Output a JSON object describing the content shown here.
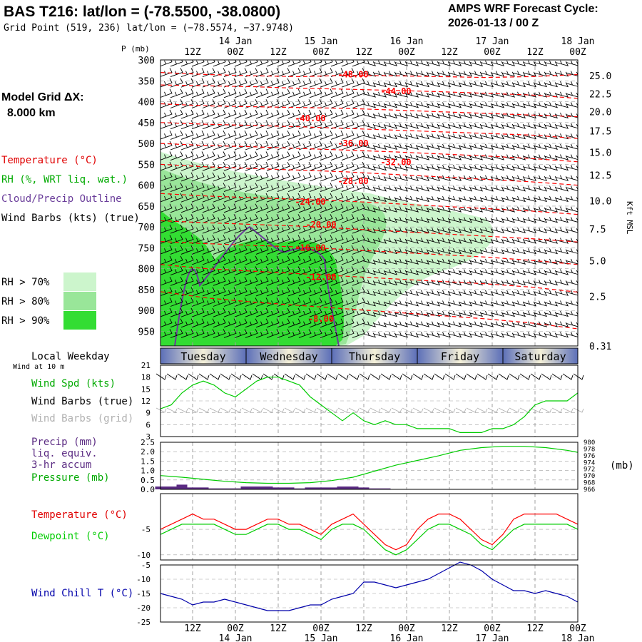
{
  "header": {
    "title": "BAS T216:  lat/lon = (-78.5500, -38.0800)",
    "grid_point": "Grid Point (519, 236) lat/lon = (−78.5574, −37.9748)",
    "cycle_line1": "AMPS WRF Forecast Cycle:",
    "cycle_line2": "2026-01-13 / 00  Z"
  },
  "left_panel": {
    "model_grid_line1": "Model Grid ΔX:",
    "model_grid_line2": "8.000 km",
    "temperature": "Temperature (°C)",
    "rh": "RH (%, WRT liq. wat.)",
    "cloud": "Cloud/Precip Outline",
    "wind_barbs": "Wind Barbs (kts) (true)",
    "rh70": "RH > 70%",
    "rh80": "RH > 80%",
    "rh90": "RH > 90%",
    "local_weekday": "Local Weekday",
    "wind_at_10m": "Wind at 10 m",
    "wind_spd": "Wind Spd (kts)",
    "wind_barbs_true": "Wind Barbs (true)",
    "wind_barbs_grid": "Wind Barbs (grid)",
    "precip1": "Precip (mm)",
    "precip2": "liq. equiv.",
    "precip3": "3-hr accum",
    "pressure": "Pressure (mb)",
    "temp2": "Temperature (°C)",
    "dewpoint": "Dewpoint (°C)",
    "windchill": "Wind Chill T (°C)",
    "pressure_unit": "(mb)",
    "kft_label": "Kft MSL",
    "p_mb": "P (mb)"
  },
  "colors": {
    "temperature": "#ff0000",
    "rh_label": "#00aa00",
    "cloud": "#6a3d9a",
    "dewpoint": "#00cc00",
    "windchill": "#0000aa",
    "precip": "#5a2a82",
    "rh70": "#ccf5cc",
    "rh80": "#99e699",
    "rh90": "#33dd33",
    "grid": "#a0a0a0",
    "grid_barbs": "#b0b0b0"
  },
  "chart_data": {
    "type": "line",
    "time_axis": {
      "hours": [
        12,
        24,
        36,
        48,
        60,
        72,
        84,
        96,
        108,
        120
      ],
      "top_labels": [
        "12Z",
        "00Z",
        "12Z",
        "00Z",
        "12Z",
        "00Z",
        "12Z",
        "00Z",
        "12Z",
        "00Z"
      ],
      "date_labels": [
        "14 Jan",
        "15 Jan",
        "16 Jan",
        "17 Jan",
        "18 Jan"
      ],
      "range_hours": [
        3,
        120
      ]
    },
    "sounding": {
      "pressure_ticks": [
        300,
        350,
        400,
        450,
        500,
        550,
        600,
        650,
        700,
        750,
        800,
        850,
        900,
        950
      ],
      "height_ticks_kft": [
        "25.0",
        "22.5",
        "20.0",
        "17.5",
        "15.0",
        "12.5",
        "10.0",
        "7.5",
        "5.0",
        "2.5",
        "0.31"
      ],
      "height_tick_pressures": [
        338,
        381,
        424,
        470,
        521,
        576,
        637,
        705,
        781,
        866,
        985
      ],
      "temperature_contours": [
        {
          "label": "-48.00",
          "pressures": [
            330,
            335,
            338,
            340,
            337,
            338,
            340,
            342,
            340,
            335
          ]
        },
        {
          "label": "-44.00",
          "pressures": [
            360,
            362,
            364,
            368,
            370,
            373,
            376,
            380,
            384,
            392
          ]
        },
        {
          "label": "-40.00",
          "pressures": [
            405,
            410,
            412,
            414,
            416,
            420,
            424,
            428,
            432,
            436
          ]
        },
        {
          "label": "-36.00",
          "pressures": [
            450,
            454,
            457,
            460,
            464,
            468,
            472,
            476,
            480,
            488
          ]
        },
        {
          "label": "-32.00",
          "pressures": [
            500,
            505,
            508,
            512,
            516,
            520,
            525,
            530,
            536,
            544
          ]
        },
        {
          "label": "-28.00",
          "pressures": [
            550,
            556,
            560,
            564,
            568,
            574,
            580,
            586,
            592,
            600
          ]
        },
        {
          "label": "-24.00",
          "pressures": [
            620,
            626,
            630,
            634,
            638,
            644,
            650,
            656,
            662,
            670
          ]
        },
        {
          "label": "-20.00",
          "pressures": [
            685,
            690,
            694,
            698,
            704,
            710,
            716,
            722,
            728,
            736
          ]
        },
        {
          "label": "-16.00",
          "pressures": [
            735,
            740,
            744,
            748,
            754,
            760,
            766,
            772,
            780,
            790
          ]
        },
        {
          "label": "-12.00",
          "pressures": [
            790,
            800,
            806,
            812,
            818,
            824,
            830,
            836,
            844,
            856
          ]
        },
        {
          "label": "-8.00",
          "pressures": [
            855,
            870,
            880,
            888,
            896,
            904,
            912,
            920,
            930,
            944
          ]
        }
      ],
      "temperature_label_positions": [
        {
          "label": "-48.00",
          "hour": 57,
          "pressure": 335
        },
        {
          "label": "-44.00",
          "hour": 69,
          "pressure": 375
        },
        {
          "label": "-40.00",
          "hour": 45,
          "pressure": 440
        },
        {
          "label": "-36.00",
          "hour": 57,
          "pressure": 500
        },
        {
          "label": "-32.00",
          "hour": 69,
          "pressure": 545
        },
        {
          "label": "-28.00",
          "hour": 57,
          "pressure": 590
        },
        {
          "label": "-24.00",
          "hour": 45,
          "pressure": 640
        },
        {
          "label": "-20.00",
          "hour": 48,
          "pressure": 695
        },
        {
          "label": "-16.00",
          "hour": 45,
          "pressure": 750
        },
        {
          "label": "-12.00",
          "hour": 48,
          "pressure": 820
        },
        {
          "label": "-8.00",
          "hour": 48,
          "pressure": 920
        }
      ]
    },
    "weekday_bar": {
      "days": [
        "Tuesday",
        "Wednesday",
        "Thursday",
        "Friday",
        "Saturday"
      ],
      "day_hours": [
        [
          3,
          27
        ],
        [
          27,
          51
        ],
        [
          51,
          75
        ],
        [
          75,
          99
        ],
        [
          99,
          120
        ]
      ]
    },
    "wind_speed": {
      "ylim": [
        3,
        21
      ],
      "yticks": [
        3,
        6,
        9,
        12,
        15,
        18,
        21
      ],
      "hours": [
        3,
        6,
        9,
        12,
        15,
        18,
        21,
        24,
        27,
        30,
        33,
        36,
        39,
        42,
        45,
        48,
        51,
        54,
        57,
        60,
        63,
        66,
        69,
        72,
        75,
        78,
        81,
        84,
        87,
        90,
        93,
        96,
        99,
        102,
        105,
        108,
        111,
        114,
        117,
        120
      ],
      "values": [
        10,
        11,
        14,
        16,
        17,
        16,
        14,
        13,
        15,
        17,
        18,
        18,
        17,
        16,
        13,
        11,
        9,
        7,
        9,
        7,
        6,
        7,
        6,
        6,
        5,
        5,
        5,
        5,
        4,
        4,
        4,
        5,
        5,
        6,
        8,
        11,
        12,
        12,
        12,
        14
      ]
    },
    "precip_pressure": {
      "precip_ylim": [
        0.0,
        2.5
      ],
      "precip_ticks": [
        "0.0",
        "0.5",
        "1.0",
        "1.5",
        "2.0",
        "2.5"
      ],
      "precip_hours": [
        3,
        6,
        9,
        12,
        15,
        18,
        21,
        24,
        27,
        30,
        33,
        36,
        39,
        42,
        45,
        48,
        51,
        54,
        57,
        60,
        63,
        66,
        69
      ],
      "precip_values": [
        0.15,
        0.15,
        0.25,
        0.1,
        0.1,
        0.05,
        0.05,
        0.05,
        0.15,
        0.15,
        0.15,
        0.1,
        0.1,
        0.05,
        0.1,
        0.1,
        0.1,
        0.15,
        0.15,
        0.1,
        0.05,
        0.05,
        0.0
      ],
      "pressure_ylim": [
        966,
        980
      ],
      "pressure_ticks": [
        966,
        968,
        970,
        972,
        974,
        976,
        978,
        980
      ],
      "pressure_hours": [
        3,
        9,
        15,
        21,
        27,
        33,
        39,
        45,
        51,
        57,
        63,
        69,
        75,
        81,
        87,
        93,
        99,
        105,
        111,
        117,
        120
      ],
      "pressure_values": [
        970.1,
        969.6,
        969.0,
        968.4,
        968.0,
        967.8,
        967.8,
        968.0,
        968.6,
        969.6,
        971.4,
        973.2,
        974.6,
        976.0,
        977.6,
        978.4,
        978.8,
        978.8,
        978.4,
        977.6,
        977.0
      ]
    },
    "temp_dew": {
      "ylim": [
        -11,
        2
      ],
      "ytick_labels": [
        "-5",
        "-10"
      ],
      "ytick_values": [
        -5,
        -10
      ],
      "hours": [
        3,
        6,
        9,
        12,
        15,
        18,
        21,
        24,
        27,
        30,
        33,
        36,
        39,
        42,
        45,
        48,
        51,
        54,
        57,
        60,
        63,
        66,
        69,
        72,
        75,
        78,
        81,
        84,
        87,
        90,
        93,
        96,
        99,
        102,
        105,
        108,
        111,
        114,
        117,
        120
      ],
      "temperature": [
        -5,
        -4,
        -3,
        -2,
        -3,
        -3,
        -4,
        -5,
        -5,
        -4,
        -3,
        -3,
        -4,
        -4,
        -5,
        -6,
        -4,
        -3,
        -2,
        -4,
        -6,
        -8,
        -9,
        -8,
        -5,
        -3,
        -2,
        -2,
        -3,
        -5,
        -7,
        -8,
        -6,
        -3,
        -2,
        -2,
        -2,
        -2,
        -3,
        -4
      ],
      "dewpoint": [
        -6,
        -5,
        -4,
        -4,
        -4,
        -4,
        -5,
        -6,
        -6,
        -5,
        -4,
        -4,
        -5,
        -5,
        -6,
        -7,
        -5,
        -4,
        -4,
        -5,
        -7,
        -9,
        -10,
        -9,
        -7,
        -5,
        -4,
        -4,
        -5,
        -6,
        -8,
        -9,
        -7,
        -5,
        -4,
        -4,
        -4,
        -4,
        -4,
        -5
      ]
    },
    "wind_chill": {
      "ylim": [
        -25,
        -5
      ],
      "yticks": [
        -5,
        -10,
        -15,
        -20,
        -25
      ],
      "hours": [
        3,
        6,
        9,
        12,
        15,
        18,
        21,
        24,
        27,
        30,
        33,
        36,
        39,
        42,
        45,
        48,
        51,
        54,
        57,
        60,
        63,
        66,
        69,
        72,
        75,
        78,
        81,
        84,
        87,
        90,
        93,
        96,
        99,
        102,
        105,
        108,
        111,
        114,
        117,
        120
      ],
      "values": [
        -15,
        -16,
        -17,
        -19,
        -18,
        -18,
        -17,
        -18,
        -19,
        -20,
        -21,
        -21,
        -21,
        -20,
        -19,
        -19,
        -17,
        -16,
        -15,
        -11,
        -11,
        -12,
        -13,
        -12,
        -11,
        -10,
        -8,
        -6,
        -4,
        -5,
        -7,
        -10,
        -12,
        -14,
        -14,
        -15,
        -14,
        -15,
        -16,
        -18
      ]
    }
  }
}
